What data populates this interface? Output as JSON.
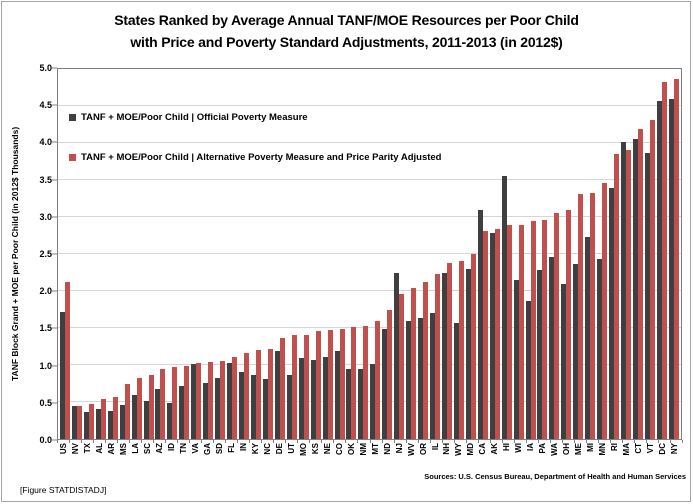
{
  "title": {
    "line1": "States Ranked by Average Annual TANF/MOE Resources per Poor Child",
    "line2": "with Price and Poverty Standard Adjustments, 2011-2013 (in 2012$)"
  },
  "footer": {
    "figure_tag": "[Figure STATDISTADJ]",
    "sources": "Sources: U.S. Census Bureau, Department of Health and Human Services"
  },
  "chart_data": {
    "type": "bar",
    "title": "States Ranked by Average Annual TANF/MOE Resources per Poor Child with Price and Poverty Standard Adjustments, 2011-2013 (in 2012$)",
    "xlabel": "",
    "ylabel": "TANF Block Grand + MOE per Poor Child (in 2012$ Thousands)",
    "ylim": [
      0,
      5
    ],
    "ytick_step": 0.5,
    "yticks": [
      "5.0",
      "4.5",
      "4.0",
      "3.5",
      "3.0",
      "2.5",
      "2.0",
      "1.5",
      "1.0",
      "0.5",
      "0.0"
    ],
    "grid": true,
    "legend_position": "inside-top-left",
    "categories": [
      "US",
      "NV",
      "TX",
      "AL",
      "AR",
      "MS",
      "LA",
      "SC",
      "AZ",
      "ID",
      "TN",
      "VA",
      "GA",
      "SD",
      "FL",
      "IN",
      "KY",
      "NC",
      "DE",
      "UT",
      "MO",
      "KS",
      "NE",
      "CO",
      "OK",
      "NM",
      "MT",
      "ND",
      "NJ",
      "WV",
      "OR",
      "IL",
      "NH",
      "WY",
      "MD",
      "CA",
      "AK",
      "HI",
      "WI",
      "IA",
      "PA",
      "WA",
      "OH",
      "ME",
      "MI",
      "MN",
      "RI",
      "MA",
      "CT",
      "VT",
      "DC",
      "NY"
    ],
    "series": [
      {
        "name": "TANF + MOE/Poor Child | Official Poverty Measure",
        "color": "#3f3f3f",
        "values": [
          1.72,
          0.45,
          0.36,
          0.41,
          0.38,
          0.46,
          0.6,
          0.52,
          0.67,
          0.49,
          0.71,
          1.01,
          0.76,
          0.82,
          1.03,
          0.9,
          0.86,
          0.81,
          1.19,
          0.87,
          1.09,
          1.07,
          1.11,
          1.19,
          0.94,
          0.94,
          1.02,
          1.49,
          2.24,
          1.59,
          1.63,
          1.7,
          2.25,
          1.57,
          2.3,
          3.1,
          2.78,
          3.55,
          2.15,
          1.86,
          2.29,
          2.46,
          2.1,
          2.37,
          2.73,
          2.43,
          3.39,
          4.02,
          4.05,
          3.87,
          4.57,
          4.59
        ]
      },
      {
        "name": "TANF + MOE/Poor Child | Alternative Poverty Measure and Price Parity Adjusted",
        "color": "#c0504d",
        "values": [
          2.12,
          0.45,
          0.47,
          0.54,
          0.57,
          0.74,
          0.83,
          0.87,
          0.95,
          0.97,
          0.99,
          1.03,
          1.04,
          1.05,
          1.11,
          1.16,
          1.2,
          1.22,
          1.37,
          1.41,
          1.41,
          1.46,
          1.47,
          1.49,
          1.52,
          1.53,
          1.6,
          1.75,
          1.96,
          2.04,
          2.12,
          2.23,
          2.38,
          2.41,
          2.5,
          2.81,
          2.84,
          2.89,
          2.89,
          2.94,
          2.96,
          3.06,
          3.09,
          3.31,
          3.32,
          3.46,
          3.85,
          3.91,
          4.19,
          4.31,
          4.83,
          4.87
        ]
      }
    ]
  }
}
